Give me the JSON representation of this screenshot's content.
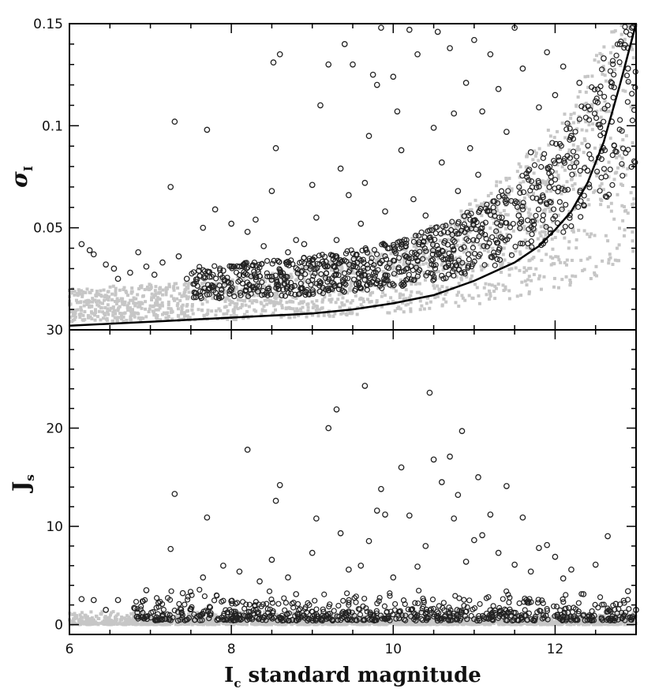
{
  "chart_data": [
    {
      "type": "scatter",
      "panel": "top",
      "ylabel": "σ",
      "ylabel_sub": "I",
      "xlim": [
        6,
        13
      ],
      "ylim": [
        0,
        0.15
      ],
      "x_ticks": [
        6,
        8,
        10,
        12
      ],
      "y_ticks": [
        0.05,
        0.1,
        0.15
      ],
      "y_tick_labels": [
        "0.05",
        "0.1",
        "0.15"
      ],
      "corner_label": "30",
      "series": [
        {
          "marker": "open-circle",
          "color": "#222222",
          "points": [
            [
              6.15,
              0.042
            ],
            [
              6.25,
              0.039
            ],
            [
              6.3,
              0.037
            ],
            [
              6.45,
              0.032
            ],
            [
              6.55,
              0.03
            ],
            [
              6.6,
              0.025
            ],
            [
              6.75,
              0.028
            ],
            [
              6.85,
              0.038
            ],
            [
              6.95,
              0.031
            ],
            [
              7.05,
              0.027
            ],
            [
              7.15,
              0.033
            ],
            [
              7.25,
              0.07
            ],
            [
              7.3,
              0.102
            ],
            [
              7.35,
              0.036
            ],
            [
              7.45,
              0.025
            ],
            [
              7.6,
              0.029
            ],
            [
              7.65,
              0.05
            ],
            [
              7.7,
              0.098
            ],
            [
              7.8,
              0.059
            ],
            [
              7.9,
              0.029
            ],
            [
              8.0,
              0.052
            ],
            [
              8.1,
              0.031
            ],
            [
              8.2,
              0.048
            ],
            [
              8.3,
              0.054
            ],
            [
              8.4,
              0.041
            ],
            [
              8.5,
              0.068
            ],
            [
              8.52,
              0.131
            ],
            [
              8.55,
              0.089
            ],
            [
              8.6,
              0.135
            ],
            [
              8.7,
              0.038
            ],
            [
              8.8,
              0.044
            ],
            [
              8.9,
              0.042
            ],
            [
              9.0,
              0.071
            ],
            [
              9.05,
              0.055
            ],
            [
              9.1,
              0.11
            ],
            [
              9.2,
              0.13
            ],
            [
              9.3,
              0.044
            ],
            [
              9.35,
              0.079
            ],
            [
              9.4,
              0.14
            ],
            [
              9.45,
              0.066
            ],
            [
              9.5,
              0.13
            ],
            [
              9.6,
              0.052
            ],
            [
              9.65,
              0.072
            ],
            [
              9.7,
              0.095
            ],
            [
              9.75,
              0.125
            ],
            [
              9.8,
              0.12
            ],
            [
              9.85,
              0.148
            ],
            [
              9.9,
              0.058
            ],
            [
              9.95,
              0.04
            ],
            [
              10.0,
              0.124
            ],
            [
              10.05,
              0.107
            ],
            [
              10.1,
              0.088
            ],
            [
              10.2,
              0.147
            ],
            [
              10.25,
              0.064
            ],
            [
              10.3,
              0.135
            ],
            [
              10.4,
              0.056
            ],
            [
              10.5,
              0.099
            ],
            [
              10.55,
              0.146
            ],
            [
              10.6,
              0.082
            ],
            [
              10.7,
              0.138
            ],
            [
              10.75,
              0.106
            ],
            [
              10.8,
              0.068
            ],
            [
              10.9,
              0.121
            ],
            [
              10.95,
              0.089
            ],
            [
              11.0,
              0.142
            ],
            [
              11.05,
              0.076
            ],
            [
              11.1,
              0.107
            ],
            [
              11.2,
              0.135
            ],
            [
              11.25,
              0.063
            ],
            [
              11.3,
              0.118
            ],
            [
              11.4,
              0.097
            ],
            [
              11.5,
              0.148
            ],
            [
              11.55,
              0.056
            ],
            [
              11.6,
              0.128
            ],
            [
              11.7,
              0.087
            ],
            [
              11.8,
              0.109
            ],
            [
              11.85,
              0.065
            ],
            [
              11.9,
              0.136
            ],
            [
              12.0,
              0.115
            ],
            [
              12.05,
              0.083
            ],
            [
              12.1,
              0.129
            ],
            [
              12.2,
              0.095
            ],
            [
              12.3,
              0.121
            ],
            [
              12.4,
              0.078
            ],
            [
              12.5,
              0.112
            ],
            [
              12.6,
              0.133
            ],
            [
              12.7,
              0.102
            ],
            [
              12.8,
              0.14
            ],
            [
              12.9,
              0.128
            ],
            [
              12.95,
              0.148
            ]
          ]
        }
      ],
      "curve": {
        "x": [
          6.0,
          6.5,
          7.0,
          7.5,
          8.0,
          8.5,
          9.0,
          9.5,
          10.0,
          10.5,
          11.0,
          11.5,
          11.8,
          12.0,
          12.2,
          12.4,
          12.6,
          12.8,
          13.0
        ],
        "y": [
          0.002,
          0.003,
          0.004,
          0.005,
          0.006,
          0.007,
          0.008,
          0.01,
          0.013,
          0.017,
          0.024,
          0.033,
          0.041,
          0.049,
          0.058,
          0.072,
          0.092,
          0.12,
          0.15
        ]
      }
    },
    {
      "type": "scatter",
      "panel": "bottom",
      "xlabel": "I",
      "xlabel_sub": "c",
      "xlabel_rest": " standard magnitude",
      "ylabel": "J",
      "ylabel_sub": "s",
      "xlim": [
        6,
        13
      ],
      "ylim": [
        -1,
        30
      ],
      "x_ticks": [
        6,
        8,
        10,
        12
      ],
      "y_ticks": [
        0,
        10,
        20
      ],
      "series": [
        {
          "marker": "open-circle",
          "color": "#222222",
          "points": [
            [
              6.15,
              2.6
            ],
            [
              6.3,
              2.5
            ],
            [
              6.45,
              1.5
            ],
            [
              6.6,
              2.5
            ],
            [
              6.8,
              1.7
            ],
            [
              6.95,
              3.5
            ],
            [
              7.1,
              2.2
            ],
            [
              7.25,
              7.7
            ],
            [
              7.3,
              13.3
            ],
            [
              7.4,
              3.2
            ],
            [
              7.5,
              1.6
            ],
            [
              7.65,
              4.8
            ],
            [
              7.7,
              10.9
            ],
            [
              7.9,
              6.0
            ],
            [
              8.0,
              2.4
            ],
            [
              8.1,
              5.4
            ],
            [
              8.2,
              17.8
            ],
            [
              8.35,
              4.4
            ],
            [
              8.5,
              6.6
            ],
            [
              8.55,
              12.6
            ],
            [
              8.6,
              14.2
            ],
            [
              8.7,
              4.8
            ],
            [
              8.8,
              3.1
            ],
            [
              9.0,
              7.3
            ],
            [
              9.05,
              10.8
            ],
            [
              9.2,
              20.0
            ],
            [
              9.3,
              21.9
            ],
            [
              9.35,
              9.3
            ],
            [
              9.45,
              5.6
            ],
            [
              9.6,
              6.0
            ],
            [
              9.65,
              24.3
            ],
            [
              9.7,
              8.5
            ],
            [
              9.8,
              11.6
            ],
            [
              9.85,
              13.8
            ],
            [
              9.9,
              11.2
            ],
            [
              10.0,
              4.8
            ],
            [
              10.1,
              16.0
            ],
            [
              10.2,
              11.1
            ],
            [
              10.3,
              5.9
            ],
            [
              10.4,
              8.0
            ],
            [
              10.45,
              23.6
            ],
            [
              10.5,
              16.8
            ],
            [
              10.6,
              14.5
            ],
            [
              10.7,
              17.1
            ],
            [
              10.75,
              10.8
            ],
            [
              10.8,
              13.2
            ],
            [
              10.85,
              19.7
            ],
            [
              10.9,
              6.4
            ],
            [
              11.0,
              8.6
            ],
            [
              11.05,
              15.0
            ],
            [
              11.1,
              9.1
            ],
            [
              11.2,
              11.2
            ],
            [
              11.3,
              7.3
            ],
            [
              11.4,
              14.1
            ],
            [
              11.5,
              6.1
            ],
            [
              11.6,
              10.9
            ],
            [
              11.7,
              5.4
            ],
            [
              11.8,
              7.8
            ],
            [
              11.9,
              8.1
            ],
            [
              12.0,
              6.9
            ],
            [
              12.1,
              4.7
            ],
            [
              12.2,
              5.6
            ],
            [
              12.35,
              3.1
            ],
            [
              12.5,
              6.1
            ],
            [
              12.65,
              9.0
            ],
            [
              12.75,
              2.1
            ],
            [
              12.9,
              3.4
            ],
            [
              13.0,
              1.5
            ]
          ]
        }
      ]
    }
  ]
}
